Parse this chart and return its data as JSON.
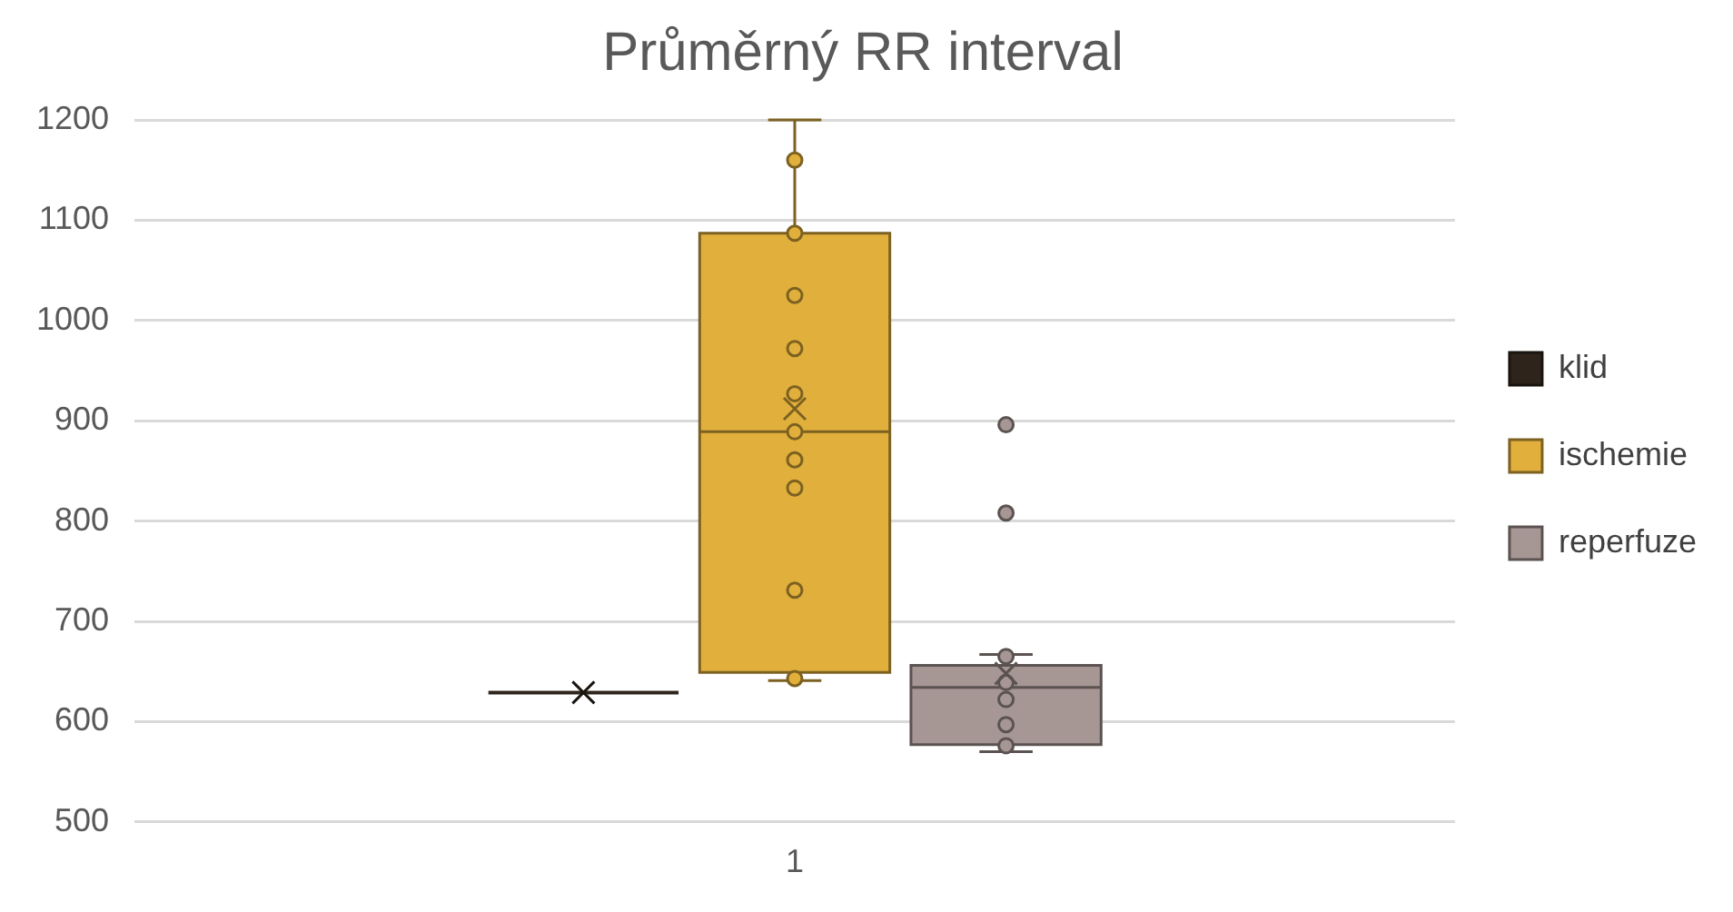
{
  "chart_data": {
    "type": "box",
    "title": "Průměrný RR interval",
    "categories": [
      "1"
    ],
    "series": [
      {
        "name": "klid",
        "color": "#2e241c",
        "boxes": [
          {
            "low": 629,
            "q1": 629,
            "median": 629,
            "q3": 629,
            "high": 629,
            "mean": 629
          }
        ]
      },
      {
        "name": "ischemie",
        "color": "#e1b03c",
        "boxes": [
          {
            "low": 641,
            "q1": 649,
            "median": 889,
            "q3": 1087,
            "high": 1200,
            "mean": 912,
            "outliers": [
              1160,
              1087,
              1025,
              972,
              927,
              889,
              861,
              833,
              731,
              643
            ]
          }
        ]
      },
      {
        "name": "reperfuze",
        "color": "#a69694",
        "boxes": [
          {
            "low": 570,
            "q1": 577,
            "median": 634,
            "q3": 656,
            "high": 667,
            "mean": 648,
            "outliers": [
              896,
              808,
              665,
              639,
              622,
              597,
              576
            ]
          }
        ]
      }
    ],
    "ylim": [
      500,
      1200
    ],
    "yticks": [
      500,
      600,
      700,
      800,
      900,
      1000,
      1100,
      1200
    ],
    "grid": "y",
    "legend": "right",
    "marker": "circle"
  }
}
